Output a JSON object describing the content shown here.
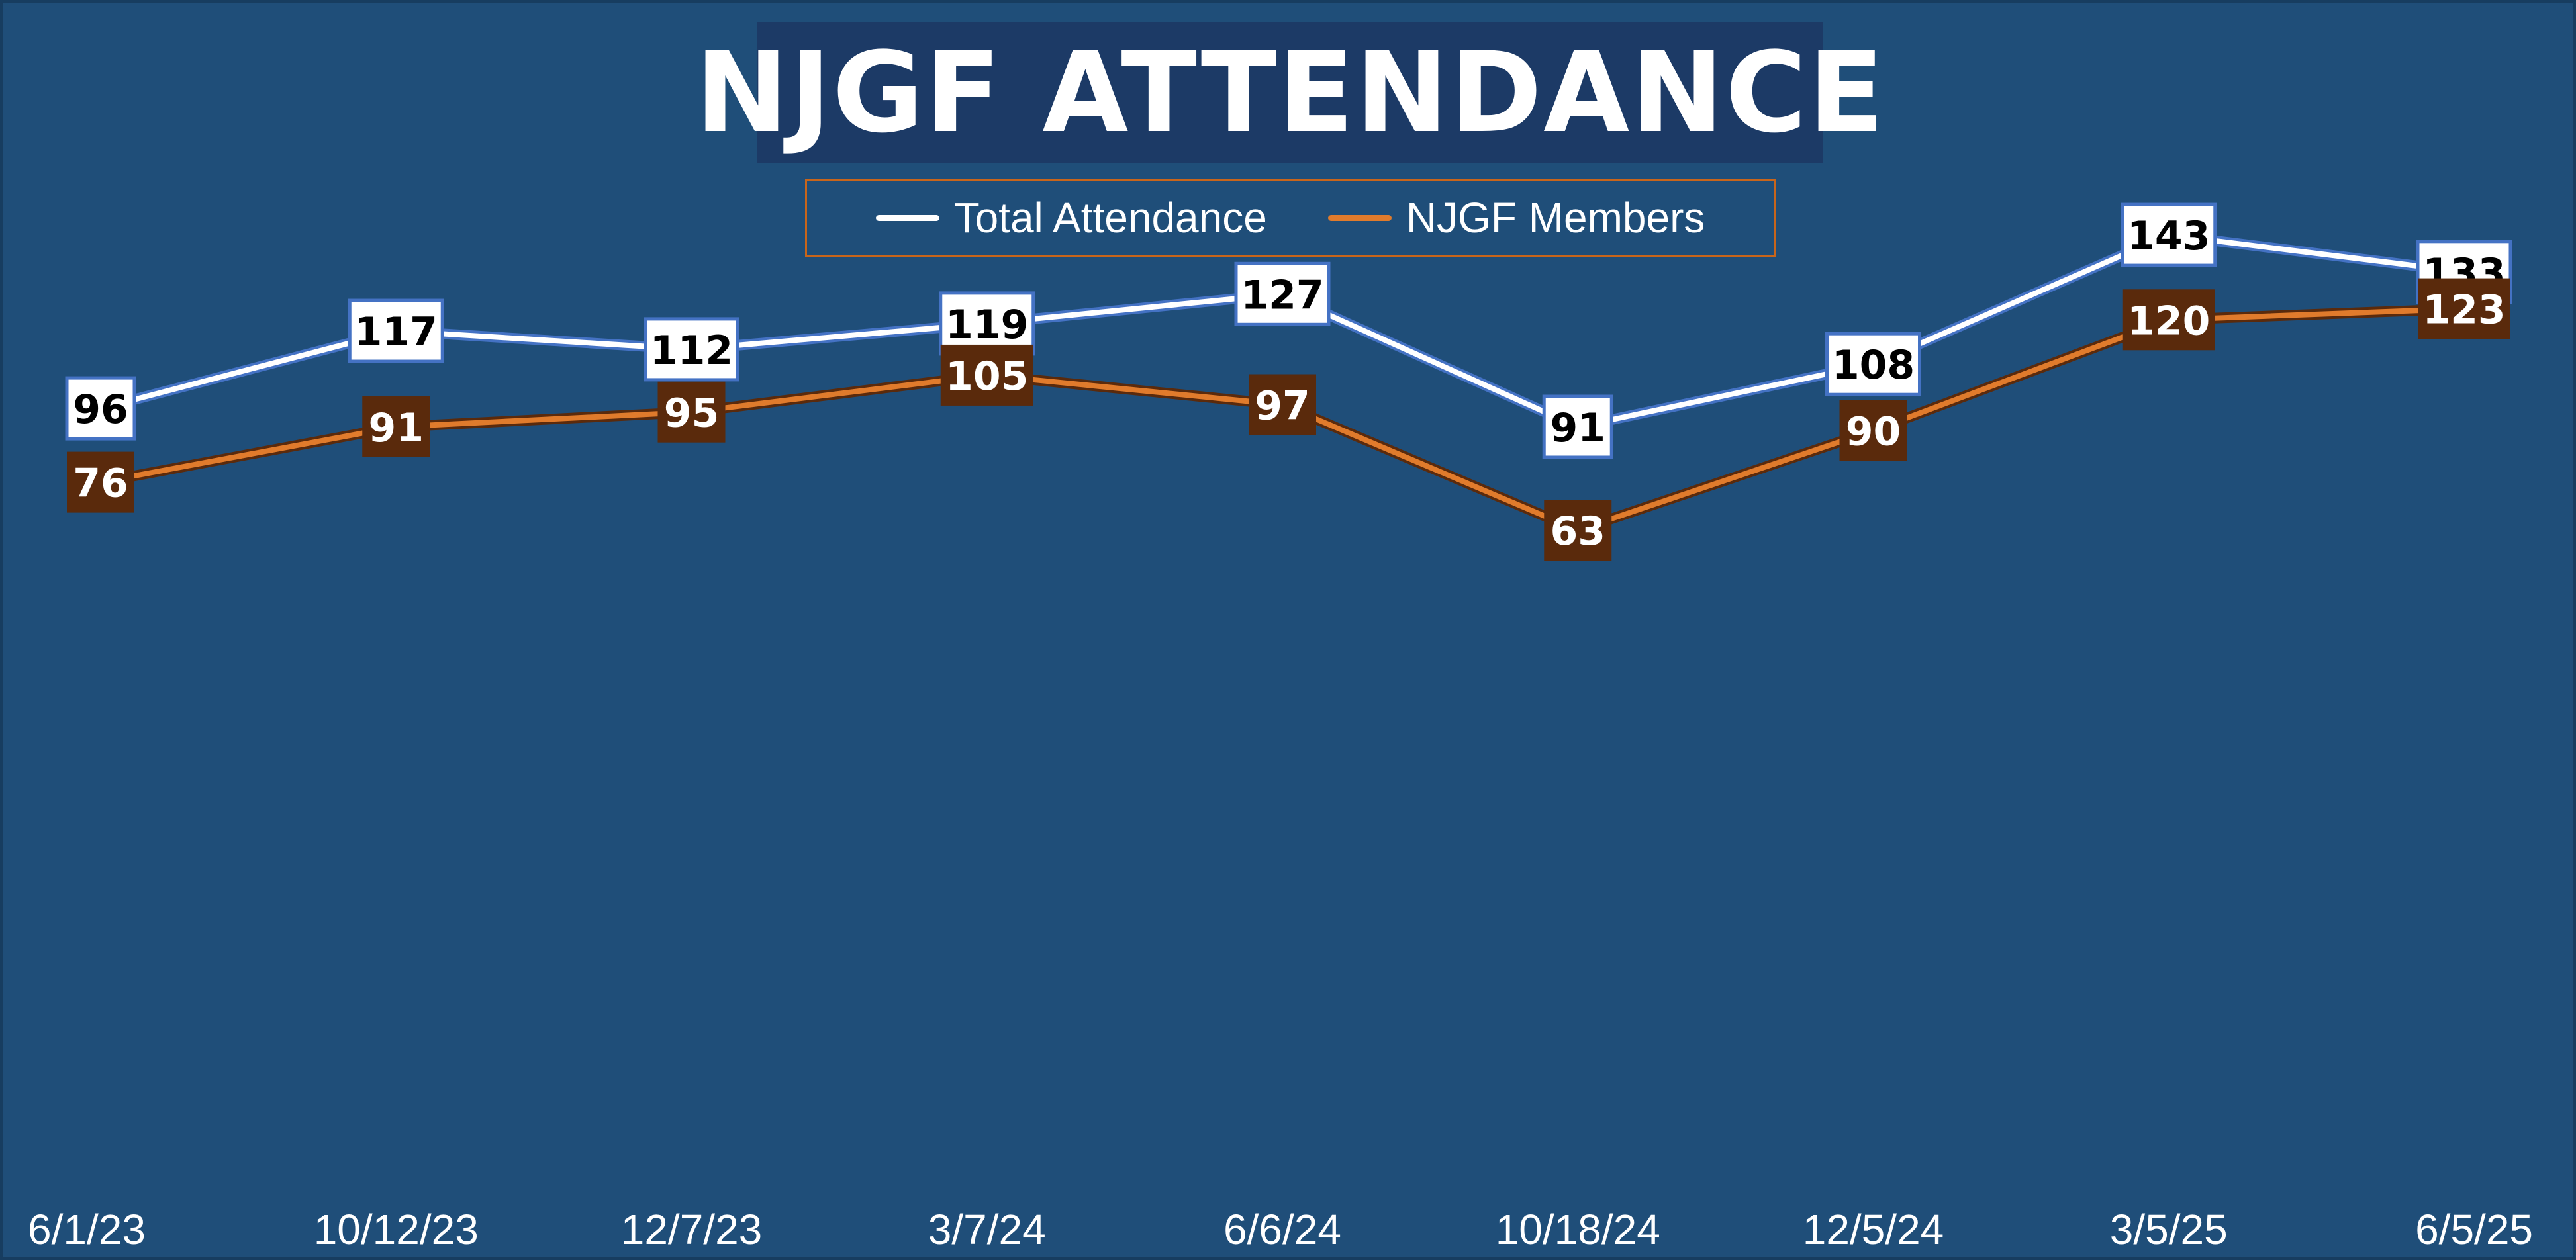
{
  "chart_data": {
    "type": "line",
    "title": "NJGF ATTENDANCE",
    "categories": [
      "6/1/23",
      "10/12/23",
      "12/7/23",
      "3/7/24",
      "6/6/24",
      "10/18/24",
      "12/5/24",
      "3/5/25",
      "6/5/25"
    ],
    "series": [
      {
        "name": "Total Attendance",
        "color": "#ffffff",
        "values": [
          96,
          117,
          112,
          119,
          127,
          91,
          108,
          143,
          133
        ]
      },
      {
        "name": "NJGF Members",
        "color": "#e07b2c",
        "values": [
          76,
          91,
          95,
          105,
          97,
          63,
          90,
          120,
          123
        ]
      }
    ],
    "legend_position": "top-center",
    "grid": false,
    "data_labels": true,
    "colors": {
      "background": "#1f4e79",
      "title_box": "#1c3a66",
      "total_label_fill": "#ffffff",
      "total_label_border": "#4472c4",
      "members_label_fill": "#5a2a0c",
      "legend_border": "#c8651b"
    }
  }
}
